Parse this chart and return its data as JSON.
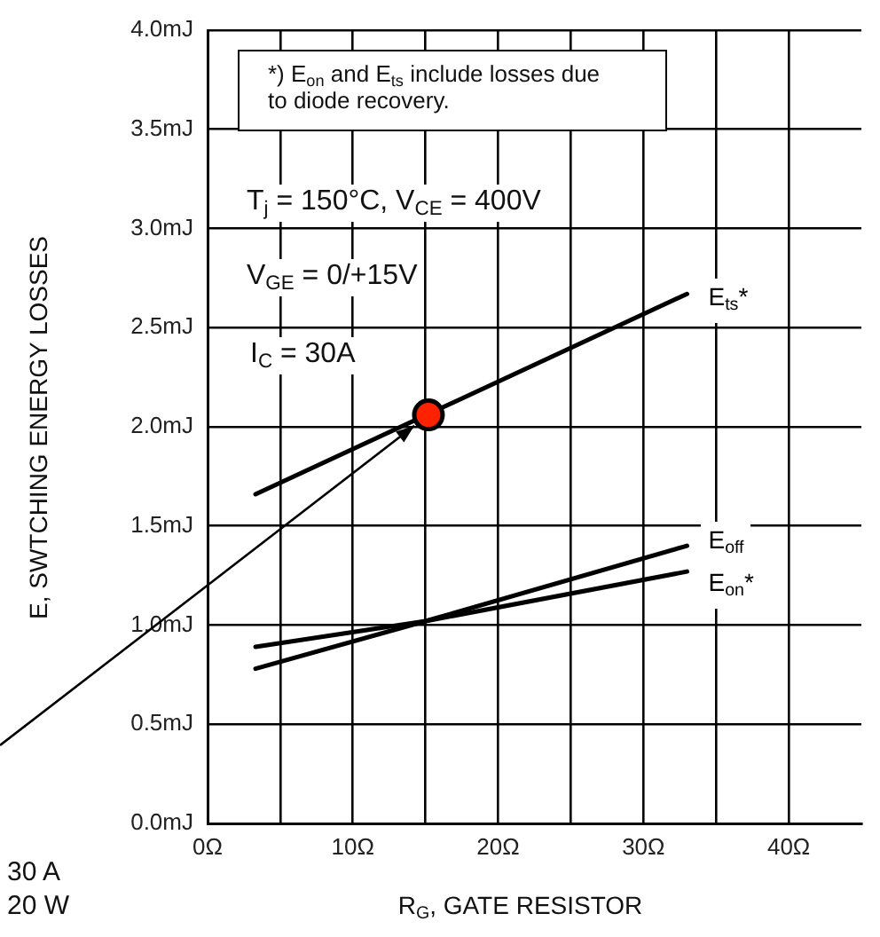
{
  "chart_data": {
    "type": "line",
    "xlabel": "R$_{G}$, GATE RESISTOR",
    "ylabel": "E, SWTCHING ENERGY LOSSES",
    "annotations": [
      "*) E$_{on}$ and E$_{ts}$ include losses due to diode recovery.",
      "T$_{j}$ = 150°C, V$_{CE}$ = 400V",
      "V$_{GE}$ = 0/+15V",
      "I$_{C}$ = 30A",
      "30 A",
      "20 W"
    ],
    "xlim": [
      0,
      45
    ],
    "xticks": [
      {
        "value": 0,
        "label": "0Ω"
      },
      {
        "value": 5,
        "label": null
      },
      {
        "value": 10,
        "label": "10Ω"
      },
      {
        "value": 15,
        "label": null
      },
      {
        "value": 20,
        "label": "20Ω"
      },
      {
        "value": 25,
        "label": null
      },
      {
        "value": 30,
        "label": "30Ω"
      },
      {
        "value": 35,
        "label": null
      },
      {
        "value": 40,
        "label": "40Ω"
      }
    ],
    "ylim": [
      0,
      4
    ],
    "yticks": [
      {
        "value": 0,
        "label": "0.0mJ"
      },
      {
        "value": 0.5,
        "label": "0.5mJ"
      },
      {
        "value": 1,
        "label": "1.0mJ"
      },
      {
        "value": 1.5,
        "label": "1.5mJ"
      },
      {
        "value": 2,
        "label": "2.0mJ"
      },
      {
        "value": 2.5,
        "label": "2.5mJ"
      },
      {
        "value": 3,
        "label": "3.0mJ"
      },
      {
        "value": 3.5,
        "label": "3.5mJ"
      },
      {
        "value": 4,
        "label": "4.0mJ"
      }
    ],
    "grid": true,
    "series": [
      {
        "name": "E$_{ts}$*",
        "color": "#000000",
        "x": [
          3.3,
          33
        ],
        "values": [
          1.66,
          2.67
        ]
      },
      {
        "name": "E$_{off}$",
        "color": "#000000",
        "x": [
          3.3,
          15,
          33
        ],
        "values": [
          0.78,
          1.02,
          1.4
        ]
      },
      {
        "name": "E$_{on}$*",
        "color": "#000000",
        "x": [
          3.3,
          15,
          33
        ],
        "values": [
          0.89,
          1.02,
          1.27
        ]
      },
      {
        "type": "scatter",
        "marker": "circle",
        "color": "#ff2200",
        "x": [
          15.2
        ],
        "values": [
          2.06
        ]
      }
    ]
  }
}
